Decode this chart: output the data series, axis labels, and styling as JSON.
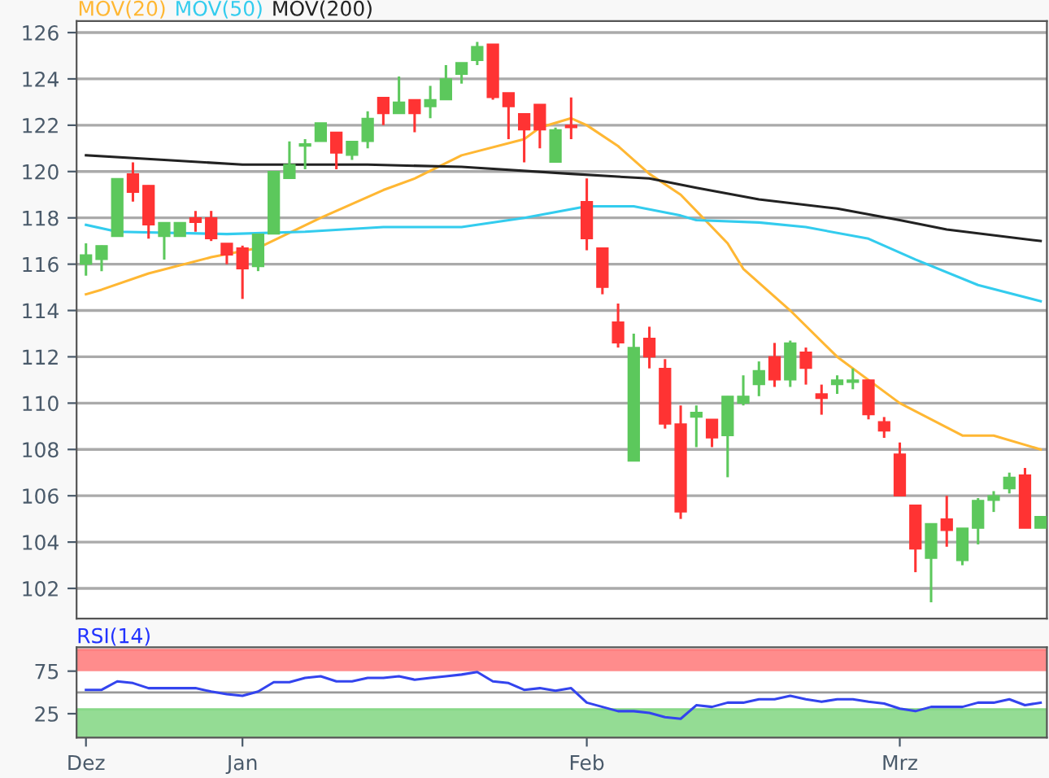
{
  "chart_data": [
    {
      "type": "candlestick",
      "categories": [
        null,
        null,
        null,
        null,
        null,
        null,
        null,
        null,
        null,
        null,
        null,
        null,
        null,
        null,
        null,
        null,
        null,
        null,
        null,
        null,
        null,
        null,
        null,
        null,
        null,
        null,
        null,
        null,
        null,
        null,
        null,
        null,
        null,
        null,
        null,
        null,
        null,
        null,
        null,
        null,
        null,
        null,
        null,
        null,
        null,
        null,
        null,
        null,
        null,
        null,
        null,
        null,
        null,
        null,
        null,
        null,
        null,
        null,
        null,
        null,
        null,
        null
      ],
      "ohlc": [
        [
          116.0,
          116.9,
          115.5,
          116.4
        ],
        [
          116.2,
          116.8,
          115.7,
          116.8
        ],
        [
          117.2,
          119.7,
          117.2,
          119.7
        ],
        [
          119.9,
          120.4,
          118.7,
          119.1
        ],
        [
          119.4,
          119.4,
          117.1,
          117.7
        ],
        [
          117.2,
          117.8,
          116.2,
          117.8
        ],
        [
          117.2,
          117.8,
          117.2,
          117.8
        ],
        [
          118.0,
          118.3,
          117.4,
          117.8
        ],
        [
          118.0,
          118.3,
          117.0,
          117.1
        ],
        [
          116.9,
          116.9,
          116.0,
          116.4
        ],
        [
          116.7,
          116.8,
          114.5,
          115.8
        ],
        [
          115.9,
          117.3,
          115.7,
          117.3
        ],
        [
          117.3,
          120.0,
          117.3,
          120.0
        ],
        [
          119.7,
          121.3,
          119.7,
          120.3
        ],
        [
          121.1,
          121.4,
          120.1,
          121.2
        ],
        [
          121.3,
          122.1,
          121.3,
          122.1
        ],
        [
          121.7,
          121.7,
          120.1,
          120.8
        ],
        [
          120.7,
          121.3,
          120.5,
          121.3
        ],
        [
          121.3,
          122.6,
          121.0,
          122.3
        ],
        [
          123.2,
          123.2,
          122.0,
          122.5
        ],
        [
          122.5,
          124.1,
          122.5,
          123.0
        ],
        [
          123.1,
          123.1,
          121.7,
          122.5
        ],
        [
          122.8,
          123.7,
          122.3,
          123.1
        ],
        [
          123.1,
          124.6,
          123.1,
          124.0
        ],
        [
          124.2,
          124.7,
          123.8,
          124.7
        ],
        [
          124.8,
          125.6,
          124.6,
          125.4
        ],
        [
          125.5,
          125.5,
          123.1,
          123.2
        ],
        [
          123.4,
          123.4,
          121.4,
          122.8
        ],
        [
          122.5,
          122.5,
          120.4,
          121.8
        ],
        [
          122.9,
          122.9,
          121.0,
          121.8
        ],
        [
          120.4,
          121.9,
          120.4,
          121.8
        ],
        [
          122.0,
          123.2,
          121.4,
          121.9
        ],
        [
          118.7,
          119.7,
          116.6,
          117.1
        ],
        [
          116.7,
          116.7,
          114.7,
          115.0
        ],
        [
          113.5,
          114.3,
          112.4,
          112.6
        ],
        [
          107.5,
          113.0,
          107.5,
          112.4
        ],
        [
          112.8,
          113.3,
          111.5,
          112.0
        ],
        [
          111.5,
          111.9,
          108.9,
          109.1
        ],
        [
          109.1,
          109.9,
          105.0,
          105.3
        ],
        [
          109.4,
          109.9,
          108.1,
          109.6
        ],
        [
          109.3,
          109.3,
          108.1,
          108.5
        ],
        [
          108.6,
          110.3,
          106.8,
          110.3
        ],
        [
          110.0,
          111.2,
          109.9,
          110.3
        ],
        [
          110.8,
          111.8,
          110.3,
          111.4
        ],
        [
          112.0,
          112.6,
          110.7,
          111.0
        ],
        [
          111.0,
          112.7,
          110.7,
          112.6
        ],
        [
          112.2,
          112.4,
          110.8,
          111.5
        ],
        [
          110.4,
          110.8,
          109.5,
          110.2
        ],
        [
          110.8,
          111.2,
          110.4,
          111.0
        ],
        [
          110.9,
          111.5,
          110.6,
          111.0
        ],
        [
          111.0,
          111.0,
          109.3,
          109.5
        ],
        [
          109.2,
          109.4,
          108.5,
          108.8
        ],
        [
          107.8,
          108.3,
          106.0,
          106.0
        ],
        [
          105.6,
          105.6,
          102.7,
          103.7
        ],
        [
          103.3,
          104.8,
          101.4,
          104.8
        ],
        [
          105.0,
          106.0,
          103.8,
          104.5
        ],
        [
          103.2,
          104.6,
          103.0,
          104.6
        ],
        [
          104.6,
          105.9,
          103.9,
          105.8
        ],
        [
          105.8,
          106.2,
          105.3,
          106.0
        ],
        [
          106.3,
          107.0,
          106.1,
          106.8
        ],
        [
          106.9,
          107.2,
          104.6,
          104.6
        ],
        [
          104.6,
          105.1,
          104.6,
          105.1
        ]
      ],
      "series": [
        {
          "name": "MOV(20)",
          "type": "line",
          "color": "#ffb733",
          "values": [
            114.7,
            114.9,
            null,
            null,
            115.6,
            null,
            null,
            null,
            116.3,
            null,
            null,
            116.7,
            null,
            null,
            null,
            118.0,
            null,
            118.6,
            null,
            119.2,
            null,
            119.7,
            null,
            null,
            120.7,
            null,
            null,
            null,
            121.4,
            121.9,
            null,
            122.3,
            122.0,
            null,
            121.1,
            null,
            119.9,
            null,
            119.0,
            null,
            null,
            116.9,
            115.8,
            null,
            null,
            114.0,
            null,
            null,
            112.0,
            null,
            null,
            null,
            110.0,
            null,
            null,
            null,
            108.6,
            null,
            108.6,
            null,
            null,
            108.0
          ]
        },
        {
          "name": "MOV(50)",
          "type": "line",
          "color": "#33ccee",
          "values": [
            117.7,
            null,
            117.4,
            null,
            null,
            null,
            null,
            null,
            null,
            117.3,
            null,
            null,
            null,
            null,
            117.4,
            null,
            null,
            null,
            null,
            117.6,
            null,
            null,
            null,
            null,
            117.6,
            null,
            null,
            null,
            118.0,
            null,
            null,
            null,
            118.5,
            null,
            null,
            118.5,
            null,
            null,
            118.1,
            117.9,
            null,
            null,
            null,
            117.8,
            null,
            null,
            117.6,
            null,
            null,
            null,
            117.1,
            null,
            null,
            116.2,
            null,
            null,
            null,
            115.1,
            null,
            null,
            null,
            114.4
          ]
        },
        {
          "name": "MOV(200)",
          "type": "line",
          "color": "#222222",
          "values": [
            120.7,
            null,
            null,
            null,
            null,
            120.5,
            null,
            null,
            null,
            null,
            120.3,
            null,
            null,
            null,
            null,
            120.3,
            null,
            null,
            120.3,
            null,
            null,
            null,
            null,
            null,
            120.2,
            null,
            null,
            null,
            null,
            null,
            null,
            119.9,
            null,
            null,
            null,
            null,
            119.7,
            null,
            null,
            119.3,
            null,
            null,
            null,
            118.8,
            null,
            null,
            null,
            null,
            118.4,
            null,
            null,
            null,
            117.9,
            null,
            null,
            117.5,
            null,
            null,
            null,
            null,
            null,
            117.0
          ]
        }
      ],
      "ylim": [
        100.7,
        126.5
      ],
      "yticks": [
        102,
        104,
        106,
        108,
        110,
        112,
        114,
        116,
        118,
        120,
        122,
        124,
        126
      ],
      "grid": "y",
      "legend": "top left",
      "tick_labels": "y"
    },
    {
      "type": "line",
      "title": "RSI(14)",
      "categories": [
        "Dez",
        null,
        null,
        null,
        null,
        null,
        null,
        null,
        null,
        null,
        "Jan",
        null,
        null,
        null,
        null,
        null,
        null,
        null,
        null,
        null,
        null,
        null,
        null,
        null,
        null,
        null,
        null,
        null,
        null,
        null,
        null,
        null,
        "Feb",
        null,
        null,
        null,
        null,
        null,
        null,
        null,
        null,
        null,
        null,
        null,
        null,
        null,
        null,
        null,
        null,
        null,
        null,
        null,
        "Mrz",
        null,
        null,
        null,
        null,
        null,
        null,
        null,
        null,
        null
      ],
      "series": [
        {
          "color": "#3344ee",
          "values": [
            53,
            53,
            63,
            61,
            55,
            55,
            55,
            55,
            51,
            48,
            46,
            51,
            62,
            62,
            67,
            69,
            63,
            63,
            67,
            67,
            69,
            65,
            67,
            69,
            71,
            74,
            63,
            61,
            53,
            55,
            52,
            55,
            38,
            33,
            28,
            28,
            26,
            21,
            19,
            35,
            33,
            38,
            38,
            42,
            42,
            46,
            42,
            39,
            42,
            42,
            39,
            37,
            31,
            28,
            33,
            33,
            33,
            38,
            38,
            42,
            35,
            38
          ]
        }
      ],
      "ylim": [
        -3,
        103
      ],
      "yticks": [
        25,
        75
      ],
      "bands": [
        {
          "axis": "y",
          "from": 75,
          "to": 100,
          "color": "#ff8080"
        },
        {
          "axis": "y",
          "from": -3,
          "to": 30,
          "color": "#88d888"
        }
      ],
      "ref_lines": [
        {
          "axis": "y",
          "value": 50,
          "color": "#999999"
        }
      ]
    }
  ]
}
